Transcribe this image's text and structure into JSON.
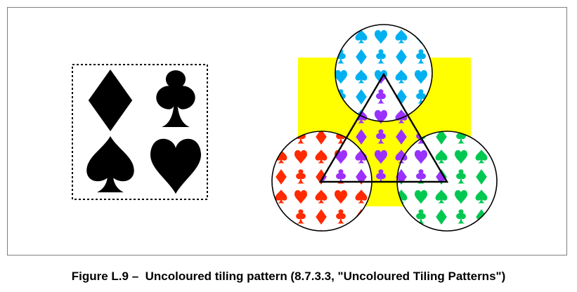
{
  "caption": "Figure L.9 –  Uncoloured tiling pattern (8.7.3.3, \"Uncoloured Tiling Patterns\")",
  "pattern_cell": {
    "symbols": [
      "diamond",
      "club",
      "spade",
      "heart"
    ],
    "fill": "#000000",
    "border": "dotted"
  },
  "composition": {
    "background_square_color": "#ffff00",
    "regions": [
      {
        "name": "top-circle",
        "pattern_color": "#00b0f0"
      },
      {
        "name": "left-circle",
        "pattern_color": "#ff2a00"
      },
      {
        "name": "right-circle",
        "pattern_color": "#00c850"
      },
      {
        "name": "center-triangle",
        "pattern_color": "#9b30ff"
      }
    ],
    "outline_color": "#000000"
  }
}
